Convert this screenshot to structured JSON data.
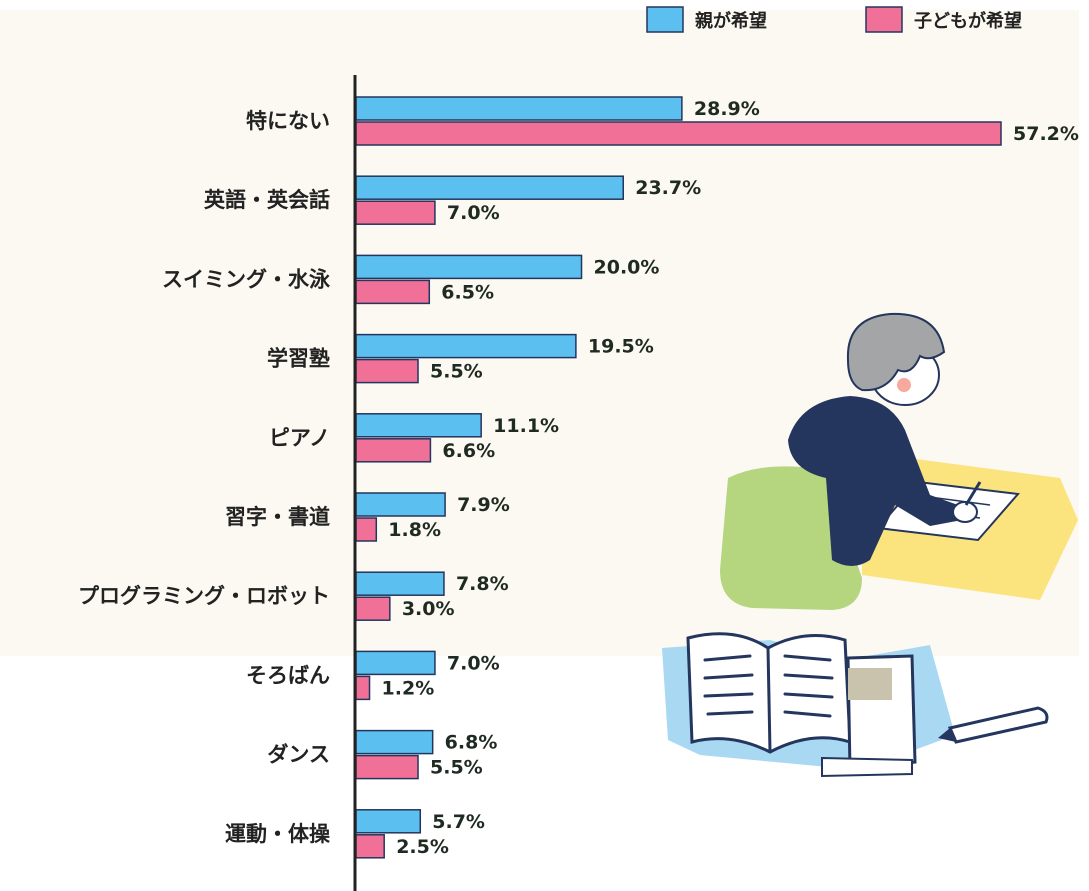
{
  "chart_data": {
    "type": "bar",
    "orientation": "horizontal",
    "categories": [
      "特にない",
      "英語・英会話",
      "スイミング・水泳",
      "学習塾",
      "ピアノ",
      "習字・書道",
      "プログラミング・ロボット",
      "そろばん",
      "ダンス",
      "運動・体操"
    ],
    "series": [
      {
        "name": "親が希望",
        "color": "#5bbfef",
        "values": [
          28.9,
          23.7,
          20.0,
          19.5,
          11.1,
          7.9,
          7.8,
          7.0,
          6.8,
          5.7
        ],
        "labels": [
          "28.9%",
          "23.7%",
          "20.0%",
          "19.5%",
          "11.1%",
          "7.9%",
          "7.8%",
          "7.0%",
          "6.8%",
          "5.7%"
        ]
      },
      {
        "name": "子どもが希望",
        "color": "#f07097",
        "values": [
          57.2,
          7.0,
          6.5,
          5.5,
          6.6,
          1.8,
          3.0,
          1.2,
          5.5,
          2.5
        ],
        "labels": [
          "57.2%",
          "7.0%",
          "6.5%",
          "5.5%",
          "6.6%",
          "1.8%",
          "3.0%",
          "1.2%",
          "5.5%",
          "2.5%"
        ]
      }
    ],
    "xlim": [
      0,
      57.2
    ],
    "legend_position": "top-right",
    "grid": false
  },
  "illustration": {
    "description_icon": "child-studying-illustration",
    "colors": {
      "background": "#fbf9f1",
      "sweater": "#24365e",
      "desk": "#fbe37e",
      "chair": "#b6d57f",
      "hair": "#a4a5a6",
      "book_shadow": "#a9d8f3"
    }
  }
}
